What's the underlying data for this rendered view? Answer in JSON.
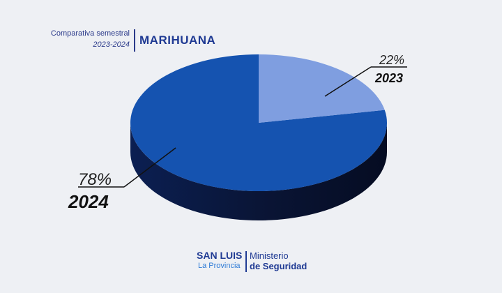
{
  "header": {
    "subtitle_line1": "Comparativa semestral",
    "subtitle_line2": "2023-2024",
    "title": "MARIHUANA"
  },
  "chart_data": {
    "type": "pie",
    "style": "3d",
    "slices": [
      {
        "label": "2024",
        "value_label": "78%",
        "value": 78,
        "color": "#1553b0"
      },
      {
        "label": "2023",
        "value_label": "22%",
        "value": 22,
        "color": "#7f9ee0"
      }
    ]
  },
  "footer": {
    "org_name": "SAN LUIS",
    "org_sub": "La Provincia",
    "ministry_line1": "Ministerio",
    "ministry_line2": "de Seguridad"
  }
}
